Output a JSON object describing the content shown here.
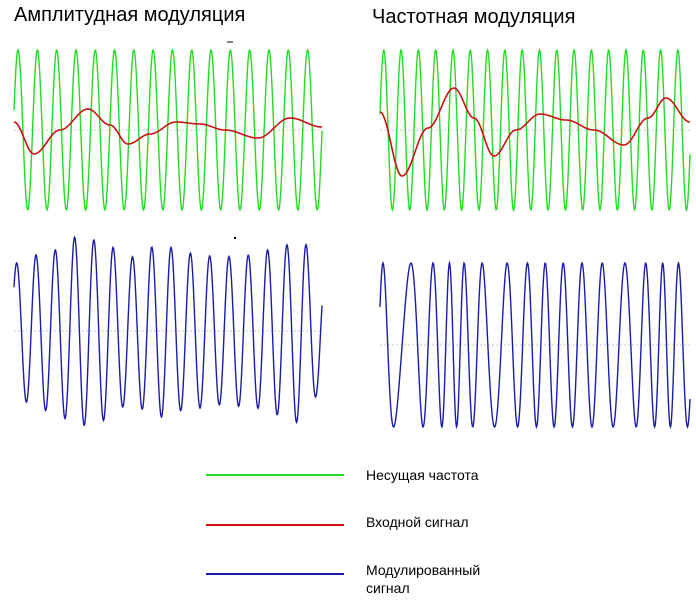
{
  "titles": {
    "am": "Амплитудная модуляция",
    "fm": "Частотная модуляция"
  },
  "legend": {
    "carrier": "Несущая частота",
    "input": "Входной сигнал",
    "modulated_line1": "Модулированный",
    "modulated_line2": "сигнал"
  },
  "colors": {
    "carrier": "#22dd22",
    "input": "#cc1111",
    "modulated": "#1c1ca8",
    "baseline": "#c8c8d8"
  },
  "icons": [
    "green-line-swatch",
    "red-line-swatch",
    "blue-line-swatch"
  ]
}
